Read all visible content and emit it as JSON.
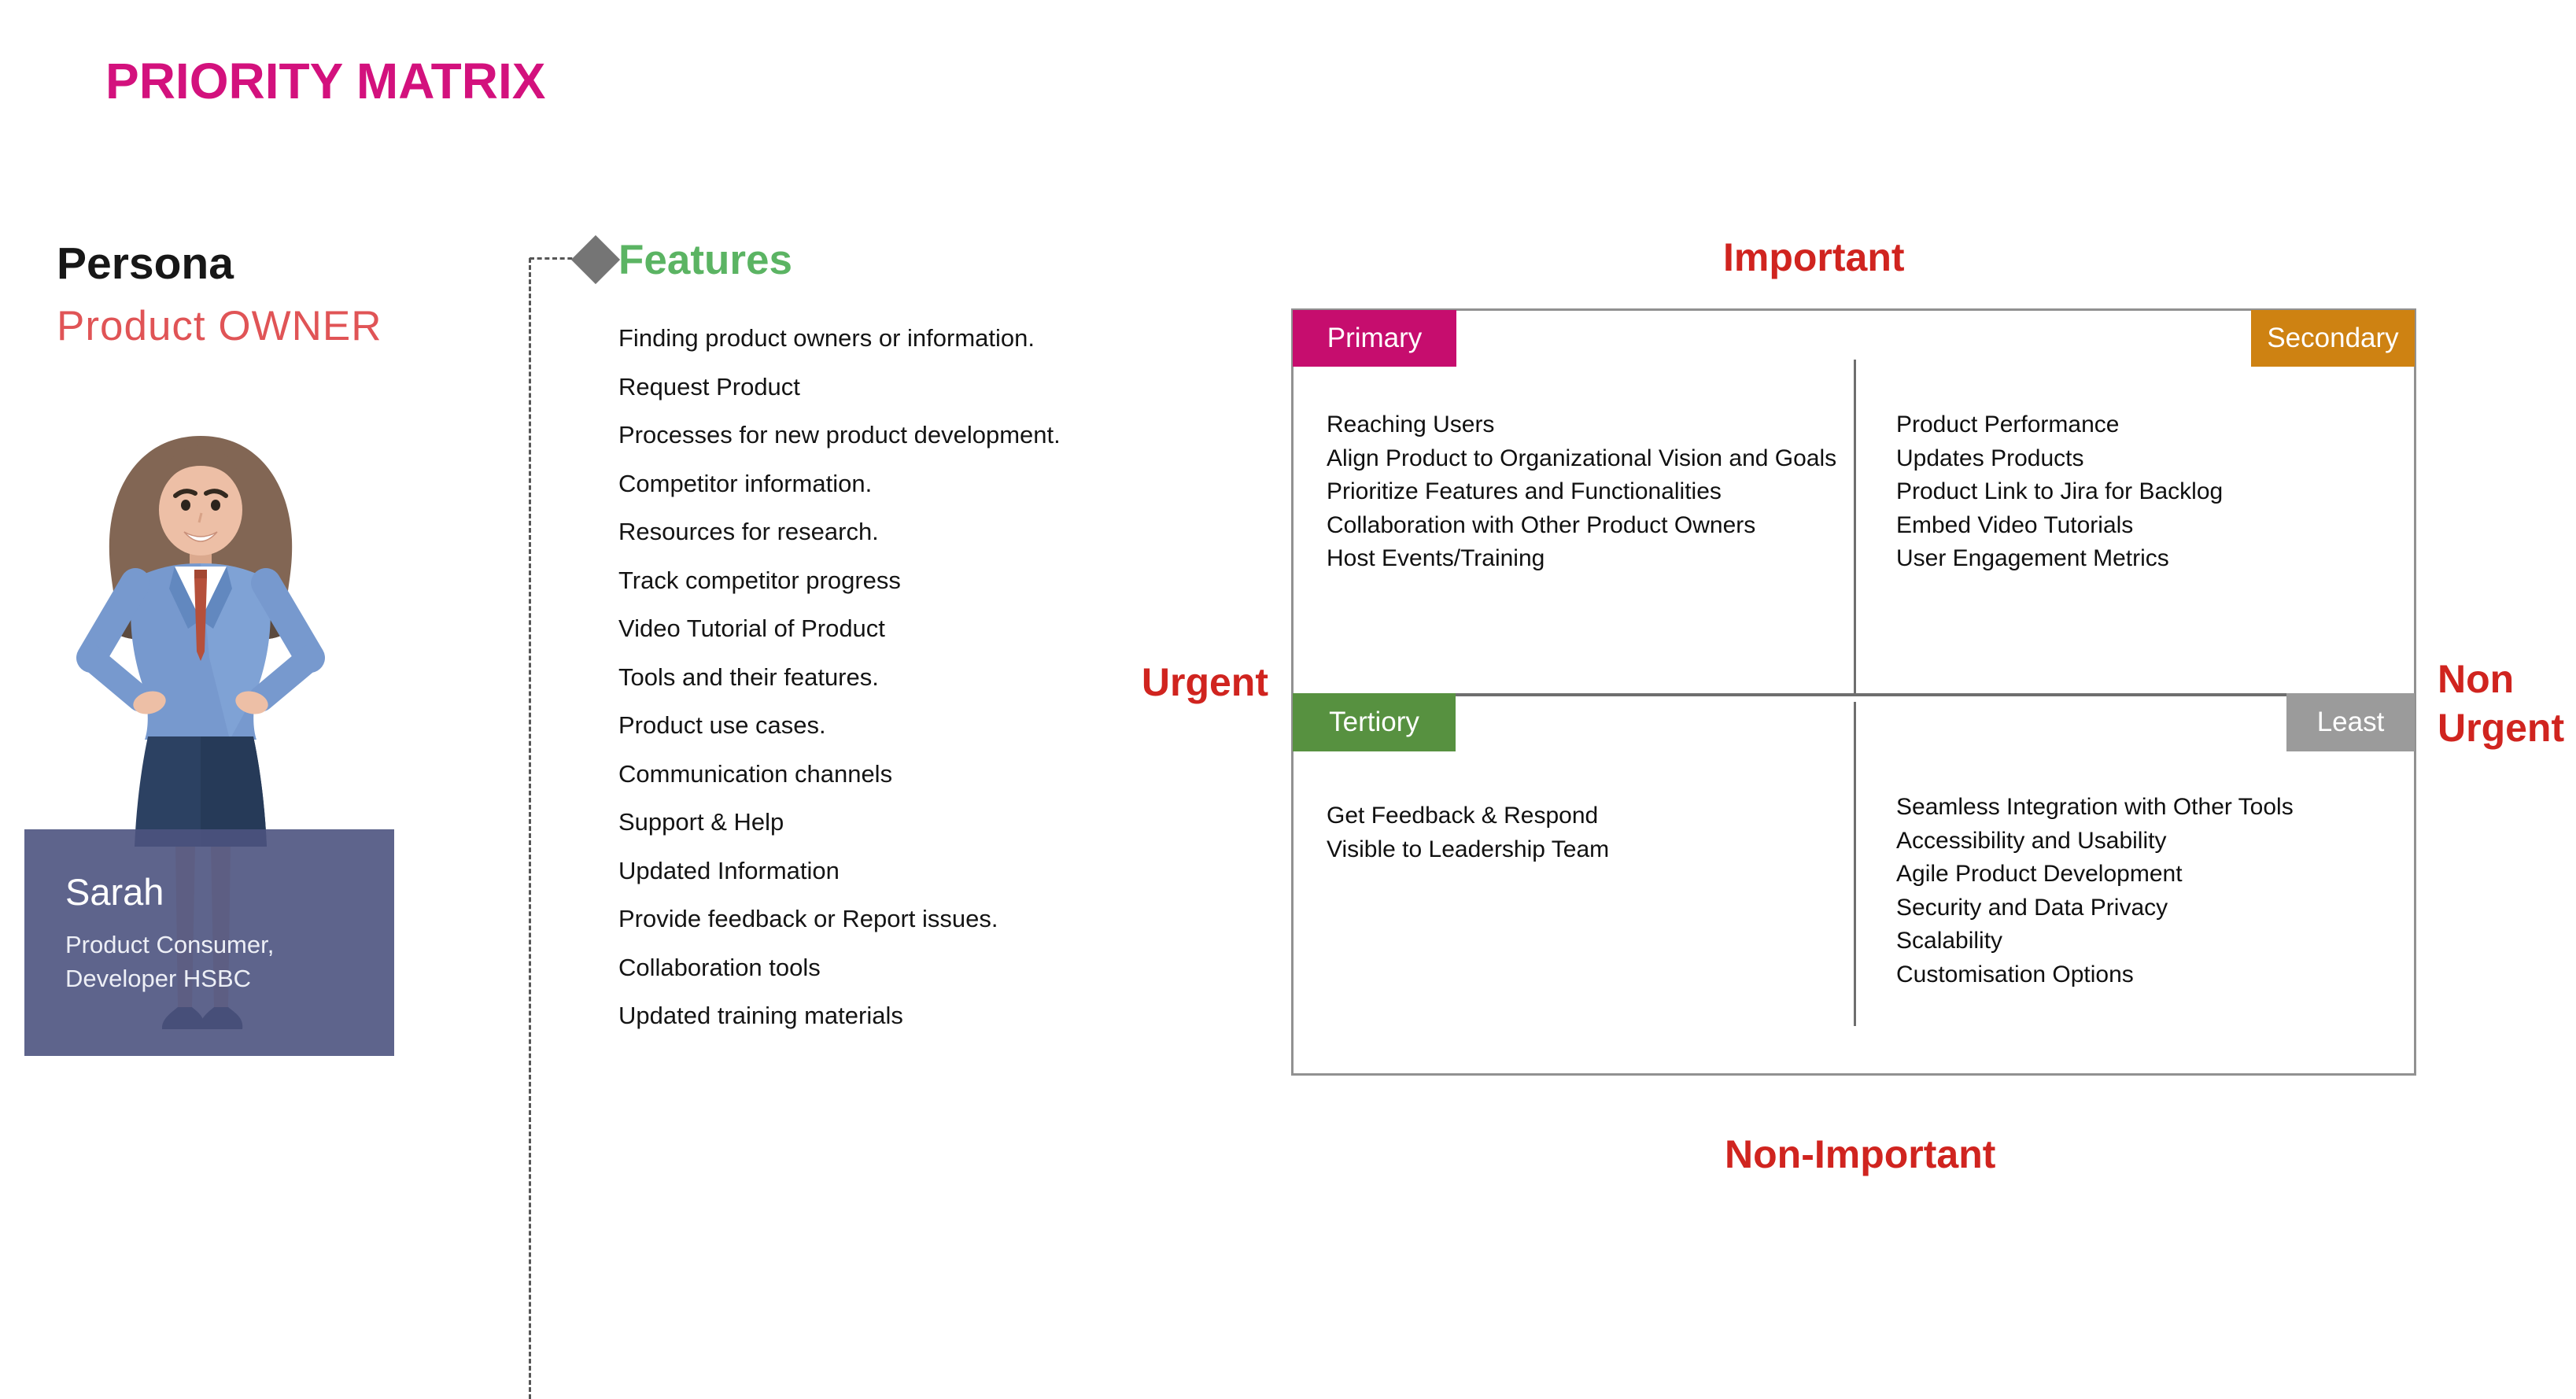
{
  "title": "PRIORITY MATRIX",
  "persona": {
    "heading": "Persona",
    "subheading": "Product OWNER",
    "card": {
      "name": "Sarah",
      "role_line1": "Product Consumer,",
      "role_line2": "Developer HSBC"
    }
  },
  "features": {
    "heading": "Features",
    "items": [
      "Finding product owners or information.",
      "Request Product",
      "Processes for new product development.",
      "Competitor information.",
      "Resources for research.",
      "Track competitor progress",
      "Video Tutorial of Product",
      "Tools and their features.",
      "Product use cases.",
      "Communication channels",
      "Support & Help",
      "Updated Information",
      "Provide feedback or Report issues.",
      "Collaboration tools",
      "Updated training materials"
    ]
  },
  "matrix": {
    "axis_labels": {
      "top": "Important",
      "bottom": "Non-Important",
      "left": "Urgent",
      "right_line1": "Non",
      "right_line2": "Urgent"
    },
    "quadrants": [
      {
        "tag": "Primary",
        "color": "#C60D6E",
        "items": [
          "Reaching Users",
          "Align Product to Organizational Vision and Goals",
          "Prioritize Features and Functionalities",
          "Collaboration with Other Product Owners",
          "Host Events/Training"
        ]
      },
      {
        "tag": "Secondary",
        "color": "#CE8212",
        "items": [
          "Product Performance",
          "Updates Products",
          "Product Link to Jira for Backlog",
          "Embed Video Tutorials",
          "User Engagement Metrics"
        ]
      },
      {
        "tag": "Tertiory",
        "color": "#579140",
        "items": [
          "Get Feedback & Respond",
          "Visible to Leadership Team"
        ]
      },
      {
        "tag": "Least",
        "color": "#9B9B9B",
        "items": [
          "Seamless Integration with Other Tools",
          "Accessibility and Usability",
          "Agile Product Development",
          "Security and Data Privacy",
          "Scalability",
          "Customisation Options"
        ]
      }
    ]
  },
  "colors": {
    "title": "#D3117D",
    "persona_subheading": "#E05456",
    "features_heading": "#5BB463",
    "axis_labels": "#D0241F",
    "card_background": "#4D5380",
    "diamond": "#757575",
    "matrix_border": "#919191",
    "matrix_lines": "#6E6E6E"
  }
}
